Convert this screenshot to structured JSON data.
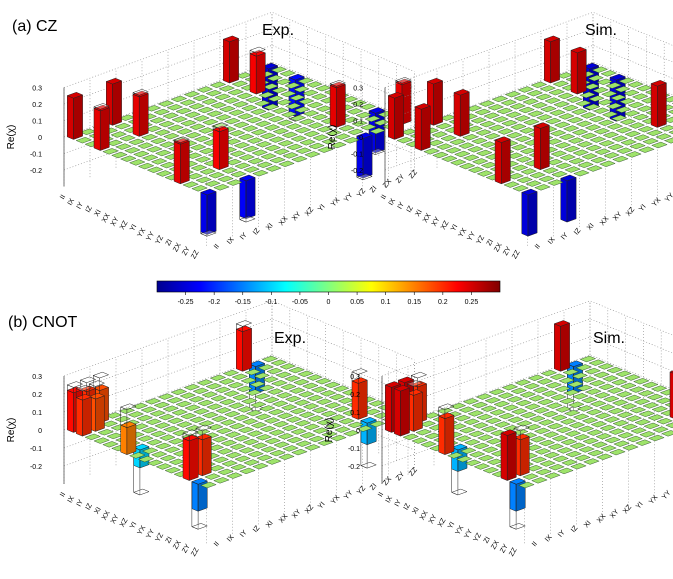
{
  "figure": {
    "panel_a_label": "(a) CZ",
    "panel_b_label": "(b) CNOT",
    "exp_label": "Exp.",
    "sim_label": "Sim."
  },
  "colors": {
    "colormap": [
      "#00008f",
      "#0000ff",
      "#0080ff",
      "#00ffff",
      "#80ff80",
      "#ffff00",
      "#ff8000",
      "#ff0000",
      "#800000"
    ],
    "frame": "#000000",
    "grid": "#888888"
  },
  "chart_data": [
    {
      "type": "bar3d",
      "panel": "(a) CZ",
      "subtitle": "Exp.",
      "zlabel": "Re(χ)",
      "ztick_labels": [
        "0.3",
        "0.2",
        "0.1",
        "0",
        "-0.1",
        "-0.2"
      ],
      "zlim": [
        -0.3,
        0.3
      ],
      "row_labels": [
        "II",
        "IX",
        "IY",
        "IZ",
        "XI",
        "XX",
        "XY",
        "XZ",
        "YI",
        "YX",
        "YY",
        "YZ",
        "ZI",
        "ZX",
        "ZY",
        "ZZ"
      ],
      "col_labels": [
        "II",
        "IX",
        "IY",
        "IZ",
        "XI",
        "XX",
        "XY",
        "XZ",
        "YI",
        "YX",
        "YY",
        "YZ",
        "ZI",
        "ZX",
        "ZY",
        "ZZ"
      ],
      "bars": [
        {
          "row": 0,
          "col": 0,
          "value": 0.25
        },
        {
          "row": 0,
          "col": 3,
          "value": 0.25
        },
        {
          "row": 0,
          "col": 12,
          "value": 0.25
        },
        {
          "row": 0,
          "col": 15,
          "value": -0.25
        },
        {
          "row": 3,
          "col": 0,
          "value": 0.24
        },
        {
          "row": 3,
          "col": 3,
          "value": 0.24
        },
        {
          "row": 3,
          "col": 12,
          "value": 0.23
        },
        {
          "row": 3,
          "col": 15,
          "value": -0.22
        },
        {
          "row": 12,
          "col": 0,
          "value": 0.24
        },
        {
          "row": 12,
          "col": 3,
          "value": 0.23
        },
        {
          "row": 12,
          "col": 12,
          "value": 0.24
        },
        {
          "row": 12,
          "col": 15,
          "value": -0.24
        },
        {
          "row": 15,
          "col": 0,
          "value": -0.24
        },
        {
          "row": 15,
          "col": 3,
          "value": -0.23
        },
        {
          "row": 15,
          "col": 12,
          "value": -0.24
        },
        {
          "row": 15,
          "col": 15,
          "value": 0.24
        }
      ],
      "grid": true
    },
    {
      "type": "bar3d",
      "panel": "(a) CZ",
      "subtitle": "Sim.",
      "zlabel": "Re(χ)",
      "ztick_labels": [
        "0.3",
        "0.2",
        "0.1",
        "0",
        "-0.1",
        "-0.2"
      ],
      "zlim": [
        -0.3,
        0.3
      ],
      "row_labels": [
        "II",
        "IX",
        "IY",
        "IZ",
        "XI",
        "XX",
        "XY",
        "XZ",
        "YI",
        "YX",
        "YY",
        "YZ",
        "ZI",
        "ZX",
        "ZY",
        "ZZ"
      ],
      "col_labels": [
        "II",
        "IX",
        "IY",
        "IZ",
        "XI",
        "XX",
        "XY",
        "XZ",
        "YI",
        "YX",
        "YY",
        "YZ",
        "ZI",
        "ZX",
        "ZY",
        "ZZ"
      ],
      "bars": [
        {
          "row": 0,
          "col": 0,
          "value": 0.25
        },
        {
          "row": 0,
          "col": 3,
          "value": 0.25
        },
        {
          "row": 0,
          "col": 12,
          "value": 0.25
        },
        {
          "row": 0,
          "col": 15,
          "value": -0.25
        },
        {
          "row": 3,
          "col": 0,
          "value": 0.25
        },
        {
          "row": 3,
          "col": 3,
          "value": 0.25
        },
        {
          "row": 3,
          "col": 12,
          "value": 0.25
        },
        {
          "row": 3,
          "col": 15,
          "value": -0.25
        },
        {
          "row": 12,
          "col": 0,
          "value": 0.25
        },
        {
          "row": 12,
          "col": 3,
          "value": 0.25
        },
        {
          "row": 12,
          "col": 12,
          "value": 0.25
        },
        {
          "row": 12,
          "col": 15,
          "value": -0.25
        },
        {
          "row": 15,
          "col": 0,
          "value": -0.25
        },
        {
          "row": 15,
          "col": 3,
          "value": -0.25
        },
        {
          "row": 15,
          "col": 12,
          "value": -0.25
        },
        {
          "row": 15,
          "col": 15,
          "value": 0.25
        }
      ],
      "grid": true
    },
    {
      "type": "bar3d",
      "panel": "(b) CNOT",
      "subtitle": "Exp.",
      "zlabel": "Re(χ)",
      "ztick_labels": [
        "0.3",
        "0.2",
        "0.1",
        "0",
        "-0.1",
        "-0.2"
      ],
      "zlim": [
        -0.3,
        0.3
      ],
      "row_labels": [
        "II",
        "IX",
        "IY",
        "IZ",
        "XI",
        "XX",
        "XY",
        "XZ",
        "YI",
        "YX",
        "YY",
        "YZ",
        "ZI",
        "ZX",
        "ZY",
        "ZZ"
      ],
      "col_labels": [
        "II",
        "IX",
        "IY",
        "IZ",
        "XI",
        "XX",
        "XY",
        "XZ",
        "YI",
        "YX",
        "YY",
        "YZ",
        "ZI",
        "ZX",
        "ZY",
        "ZZ"
      ],
      "bars": [
        {
          "row": 0,
          "col": 0,
          "value": 0.22
        },
        {
          "row": 0,
          "col": 1,
          "value": 0.2
        },
        {
          "row": 0,
          "col": 2,
          "value": 0.18
        },
        {
          "row": 0,
          "col": 13,
          "value": 0.22
        },
        {
          "row": 0,
          "col": 14,
          "value": -0.15
        },
        {
          "row": 1,
          "col": 0,
          "value": 0.2
        },
        {
          "row": 1,
          "col": 1,
          "value": 0.18
        },
        {
          "row": 6,
          "col": 0,
          "value": 0.15
        },
        {
          "row": 6,
          "col": 1,
          "value": -0.1
        },
        {
          "row": 13,
          "col": 0,
          "value": 0.22
        },
        {
          "row": 13,
          "col": 1,
          "value": 0.2
        },
        {
          "row": 13,
          "col": 13,
          "value": 0.2
        },
        {
          "row": 14,
          "col": 0,
          "value": -0.15
        },
        {
          "row": 14,
          "col": 13,
          "value": -0.12
        }
      ],
      "grid": true
    },
    {
      "type": "bar3d",
      "panel": "(b) CNOT",
      "subtitle": "Sim.",
      "zlabel": "Re(χ)",
      "ztick_labels": [
        "0.3",
        "0.2",
        "0.1",
        "0",
        "-0.1",
        "-0.2"
      ],
      "zlim": [
        -0.3,
        0.3
      ],
      "row_labels": [
        "II",
        "IX",
        "IY",
        "IZ",
        "XI",
        "XX",
        "XY",
        "XZ",
        "YI",
        "YX",
        "YY",
        "YZ",
        "ZI",
        "ZX",
        "ZY",
        "ZZ"
      ],
      "col_labels": [
        "II",
        "IX",
        "IY",
        "IZ",
        "XI",
        "XX",
        "XY",
        "XZ",
        "YI",
        "YX",
        "YY",
        "YZ",
        "ZI",
        "ZX",
        "ZY",
        "ZZ"
      ],
      "bars": [
        {
          "row": 0,
          "col": 0,
          "value": 0.25
        },
        {
          "row": 0,
          "col": 1,
          "value": 0.25
        },
        {
          "row": 0,
          "col": 2,
          "value": 0.2
        },
        {
          "row": 0,
          "col": 13,
          "value": 0.25
        },
        {
          "row": 0,
          "col": 14,
          "value": -0.15
        },
        {
          "row": 1,
          "col": 0,
          "value": 0.25
        },
        {
          "row": 1,
          "col": 1,
          "value": 0.2
        },
        {
          "row": 6,
          "col": 0,
          "value": 0.2
        },
        {
          "row": 6,
          "col": 1,
          "value": -0.12
        },
        {
          "row": 13,
          "col": 0,
          "value": 0.25
        },
        {
          "row": 13,
          "col": 1,
          "value": 0.2
        },
        {
          "row": 13,
          "col": 13,
          "value": 0.25
        },
        {
          "row": 14,
          "col": 0,
          "value": -0.15
        },
        {
          "row": 14,
          "col": 13,
          "value": -0.15
        }
      ],
      "grid": true
    },
    {
      "type": "colorbar",
      "tick_labels": [
        "-0.25",
        "-0.2",
        "-0.15",
        "-0.1",
        "-0.05",
        "0",
        "0.05",
        "0.1",
        "0.15",
        "0.2",
        "0.25"
      ],
      "range": [
        -0.3,
        0.3
      ]
    }
  ]
}
